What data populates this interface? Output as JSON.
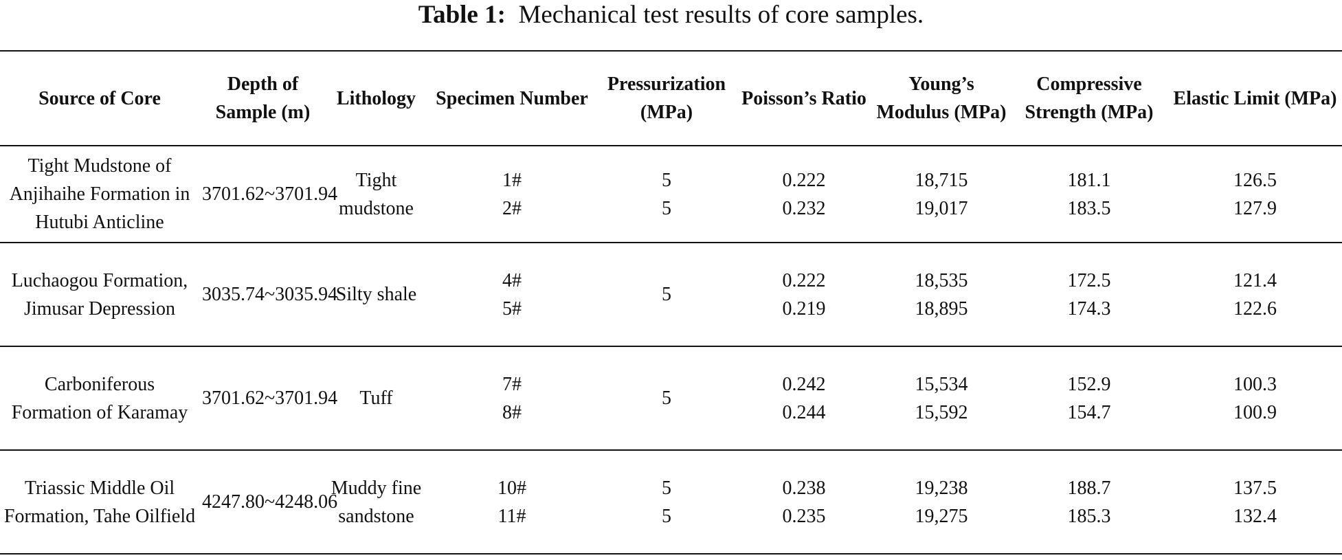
{
  "caption": {
    "label": "Table 1:",
    "text": "Mechanical test results of core samples."
  },
  "table": {
    "headers": [
      "Source of Core",
      "Depth of Sample (m)",
      "Lithology",
      "Specimen Number",
      "Pressurization (MPa)",
      "Poisson’s Ratio",
      "Young’s Modulus (MPa)",
      "Compressive Strength (MPa)",
      "Elastic Limit (MPa)"
    ],
    "groups": [
      {
        "source": "Tight Mudstone of Anjihaihe Formation in Hutubi Anticline",
        "depth": "3701.62~3701.94",
        "lithology": "Tight mudstone",
        "specimens": [
          "1#",
          "2#"
        ],
        "pressurization": [
          "5",
          "5"
        ],
        "poisson": [
          "0.222",
          "0.232"
        ],
        "youngs": [
          "18,715",
          "19,017"
        ],
        "compressive": [
          "181.1",
          "183.5"
        ],
        "elastic": [
          "126.5",
          "127.9"
        ]
      },
      {
        "source": "Luchaogou Formation, Jimusar Depression",
        "depth": "3035.74~3035.94",
        "lithology": "Silty shale",
        "specimens": [
          "4#",
          "5#"
        ],
        "pressurization": [
          "5"
        ],
        "poisson": [
          "0.222",
          "0.219"
        ],
        "youngs": [
          "18,535",
          "18,895"
        ],
        "compressive": [
          "172.5",
          "174.3"
        ],
        "elastic": [
          "121.4",
          "122.6"
        ]
      },
      {
        "source": "Carboniferous Formation of Karamay",
        "depth": "3701.62~3701.94",
        "lithology": "Tuff",
        "specimens": [
          "7#",
          "8#"
        ],
        "pressurization": [
          "5"
        ],
        "poisson": [
          "0.242",
          "0.244"
        ],
        "youngs": [
          "15,534",
          "15,592"
        ],
        "compressive": [
          "152.9",
          "154.7"
        ],
        "elastic": [
          "100.3",
          "100.9"
        ]
      },
      {
        "source": "Triassic Middle Oil Formation, Tahe Oilfield",
        "depth": "4247.80~4248.06",
        "lithology": "Muddy fine sandstone",
        "specimens": [
          "10#",
          "11#"
        ],
        "pressurization": [
          "5",
          "5"
        ],
        "poisson": [
          "0.238",
          "0.235"
        ],
        "youngs": [
          "19,238",
          "19,275"
        ],
        "compressive": [
          "188.7",
          "185.3"
        ],
        "elastic": [
          "137.5",
          "132.4"
        ]
      }
    ]
  }
}
